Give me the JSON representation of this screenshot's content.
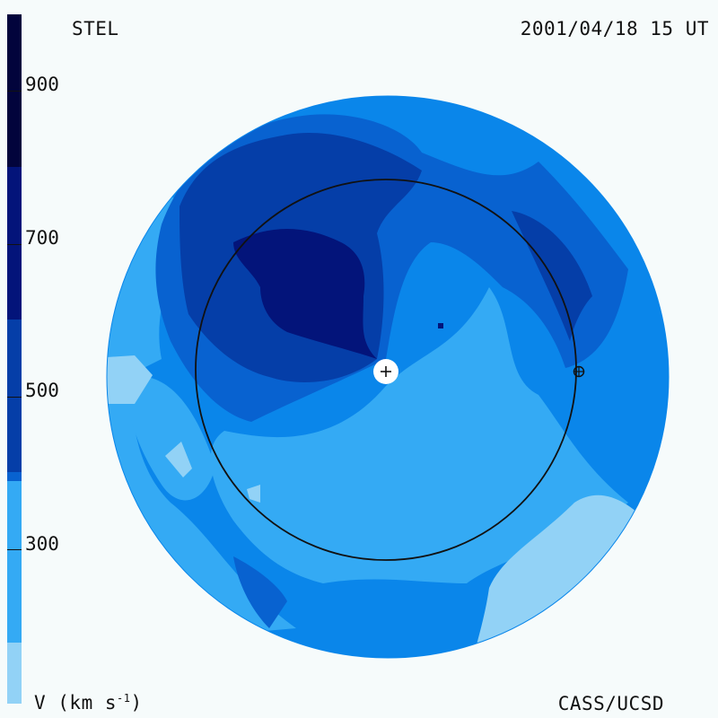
{
  "header": {
    "left_title": "STEL",
    "right_title": "2001/04/18 15 UT"
  },
  "legend": {
    "label_text": "V (km s",
    "label_exp": "-1",
    "label_close": ")",
    "ticks": [
      "900",
      "700",
      "500",
      "300"
    ]
  },
  "footer": {
    "credit": "CASS/UCSD"
  },
  "colors": {
    "background": "#f6fbfb",
    "level_0_lightest": "#92d2f6",
    "level_1": "#34aaf4",
    "level_2": "#0a86ea",
    "level_3": "#0862d0",
    "level_4": "#053ea8",
    "level_5": "#03147a",
    "level_6_darkest": "#02043c",
    "outline": "#111111"
  }
}
